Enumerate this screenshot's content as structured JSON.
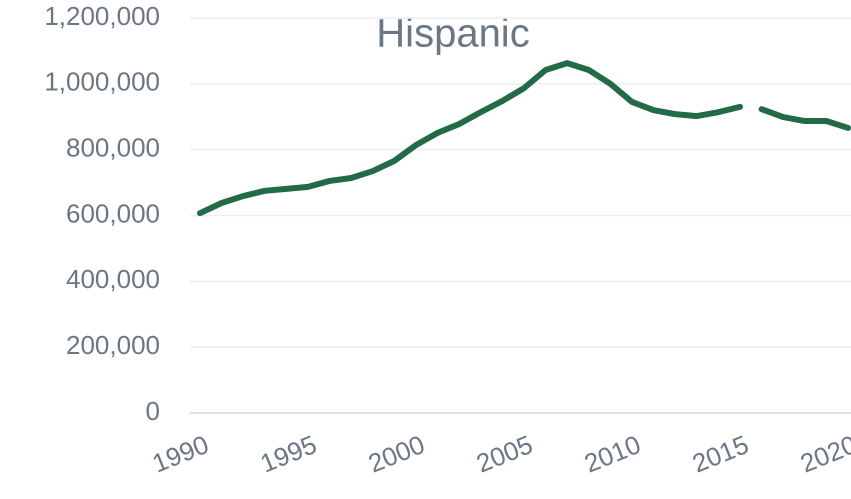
{
  "chart_data": {
    "type": "line",
    "title": "Hispanic",
    "xlim": [
      1990,
      2020
    ],
    "xticks": [
      1990,
      1995,
      2000,
      2005,
      2010,
      2015,
      2020
    ],
    "ylim": [
      0,
      1200000
    ],
    "yticks": [
      0,
      {
        "value": 200000,
        "label": "200,000"
      },
      {
        "value": 400000,
        "label": "400,000"
      },
      {
        "value": 600000,
        "label": "600,000"
      },
      {
        "value": 800000,
        "label": "800,000"
      },
      {
        "value": 1000000,
        "label": "1,000,000"
      },
      {
        "value": 1200000,
        "label": "1,200,000"
      }
    ],
    "grid": true,
    "series": [
      {
        "color": "#236b48",
        "x": [
          1990,
          1991,
          1992,
          1993,
          1994,
          1995,
          1996,
          1997,
          1998,
          1999,
          2000,
          2001,
          2002,
          2003,
          2004,
          2005,
          2006,
          2007,
          2008,
          2009,
          2010,
          2011,
          2012,
          2013,
          2014,
          2015
        ],
        "values": [
          607000,
          638000,
          659000,
          675000,
          681000,
          687000,
          705000,
          714000,
          735000,
          766000,
          814000,
          851000,
          878000,
          914000,
          948000,
          987000,
          1042000,
          1063000,
          1042000,
          1000000,
          945000,
          920000,
          908000,
          902000,
          914000,
          930000
        ]
      },
      {
        "color": "#236b48",
        "x": [
          2016,
          2017,
          2018,
          2019,
          2020
        ],
        "values": [
          923000,
          899000,
          887000,
          887000,
          866000
        ]
      }
    ]
  }
}
